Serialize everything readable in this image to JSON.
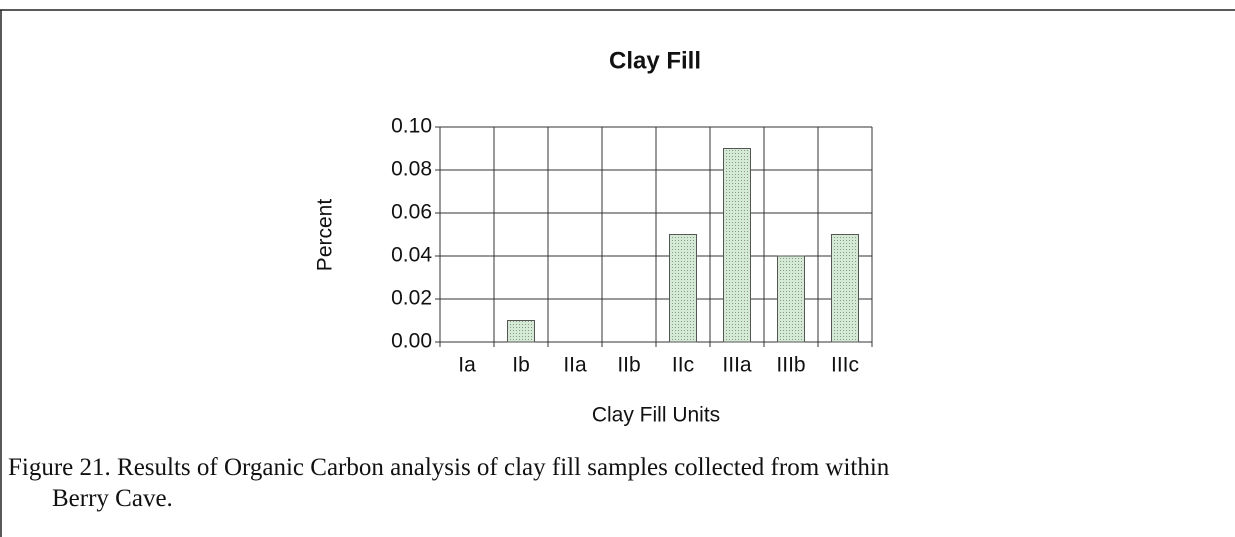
{
  "chart_data": {
    "type": "bar",
    "title": "Clay Fill",
    "x_label": "Clay Fill Units",
    "y_label": "Percent",
    "categories": [
      "Ia",
      "Ib",
      "IIa",
      "IIb",
      "IIc",
      "IIIa",
      "IIIb",
      "IIIc"
    ],
    "values": [
      0,
      0.01,
      0,
      0,
      0.05,
      0.09,
      0.04,
      0.05
    ],
    "color": "#d4ead4",
    "ylim": [
      0,
      0.1
    ],
    "yticks": [
      {
        "value": 0,
        "label": "0.00"
      },
      0.02,
      0.04,
      0.06,
      0.08,
      {
        "value": 0.1,
        "label": "0.10"
      }
    ],
    "grid": true
  },
  "caption": "Figure 21.  Results of Organic Carbon analysis of clay fill samples collected from within Berry Cave."
}
